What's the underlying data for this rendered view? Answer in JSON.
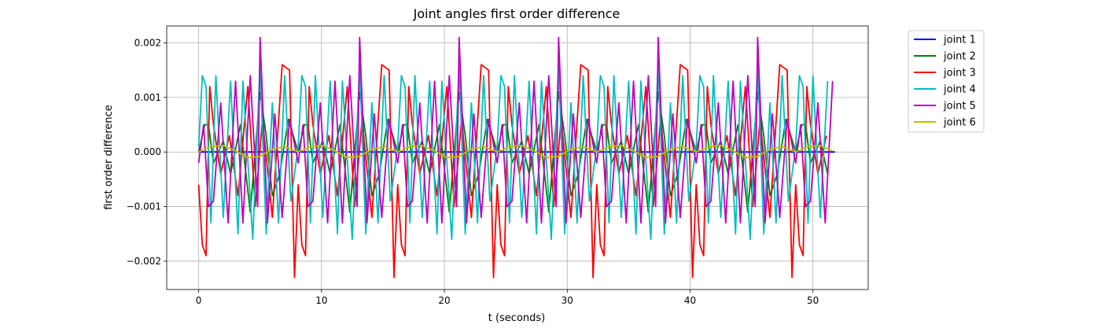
{
  "chart_data": {
    "type": "line",
    "title": "Joint angles first order difference",
    "xlabel": "t (seconds)",
    "ylabel": "first order difference",
    "xlim": [
      -2.6,
      54.5
    ],
    "ylim": [
      -0.00252,
      0.00231
    ],
    "xticks": [
      0,
      10,
      20,
      30,
      40,
      50
    ],
    "xtick_labels": [
      "0",
      "10",
      "20",
      "30",
      "40",
      "50"
    ],
    "yticks": [
      -0.002,
      -0.001,
      0.0,
      0.001,
      0.002
    ],
    "ytick_labels": [
      "−0.002",
      "−0.001",
      "0.000",
      "0.001",
      "0.002"
    ],
    "grid": true,
    "legend_position": "outside-top-right",
    "x_range": [
      0,
      51.8
    ],
    "period_seconds": 8.1,
    "series": [
      {
        "name": "joint 1",
        "color": "#0000ff",
        "x": [
          0,
          51.8
        ],
        "y": [
          0,
          0
        ]
      },
      {
        "name": "joint 2",
        "color": "#008000",
        "x": [
          0,
          0.5,
          0.8,
          1.2,
          2.0,
          2.6,
          3.4,
          4.2,
          5.0,
          5.5,
          6.0,
          6.6,
          7.3,
          8.1
        ],
        "y": [
          0,
          0.0005,
          0.0005,
          -0.0002,
          0.0002,
          -0.0004,
          0.0005,
          -0.0011,
          0.0011,
          0.0003,
          -0.0008,
          -0.0004,
          0.0006,
          0.0
        ]
      },
      {
        "name": "joint 3",
        "color": "#ff0000",
        "x": [
          0,
          0.3,
          0.6,
          0.9,
          1.2,
          1.8,
          2.5,
          3.2,
          4.0,
          4.6,
          5.2,
          6.0,
          6.8,
          7.4,
          7.8,
          8.1
        ],
        "y": [
          -0.0006,
          -0.0017,
          -0.0019,
          0.0012,
          0.0005,
          -0.0004,
          0.0003,
          -0.0008,
          0.0012,
          -0.001,
          0.0006,
          -0.0012,
          0.0016,
          0.0015,
          -0.0023,
          -0.0006
        ]
      },
      {
        "name": "joint 4",
        "color": "#00bfbf",
        "x": [
          0,
          0.3,
          0.6,
          1.0,
          1.4,
          2.0,
          2.6,
          3.2,
          3.6,
          4.4,
          5.0,
          5.5,
          6.0,
          6.5,
          7.0,
          7.5,
          8.1
        ],
        "y": [
          0.0001,
          0.0014,
          0.0012,
          -0.0013,
          0.0014,
          -0.0012,
          0.0013,
          -0.0015,
          0.0013,
          -0.0016,
          0.0016,
          -0.0015,
          0.0009,
          -0.0013,
          0.0014,
          -0.0009,
          0.0001
        ]
      },
      {
        "name": "joint 5",
        "color": "#bf00bf",
        "x": [
          0,
          0.4,
          0.8,
          1.2,
          1.8,
          2.4,
          3.0,
          3.6,
          4.2,
          4.8,
          5.0,
          5.6,
          6.2,
          6.8,
          7.4,
          8.1
        ],
        "y": [
          -0.0002,
          0.0005,
          -0.001,
          -0.0009,
          0.0009,
          -0.0013,
          0.0013,
          -0.0013,
          0.0014,
          -0.001,
          0.0021,
          -0.0013,
          0.0007,
          -0.0012,
          0.0006,
          -0.0002
        ]
      },
      {
        "name": "joint 6",
        "color": "#bfbf00",
        "x": [
          0,
          1.0,
          2.0,
          3.0,
          4.0,
          5.0,
          6.0,
          7.0,
          8.1
        ],
        "y": [
          0,
          0.0001,
          0.00012,
          2e-05,
          -0.0001,
          -8e-05,
          5e-05,
          0.0001,
          0
        ]
      }
    ]
  }
}
